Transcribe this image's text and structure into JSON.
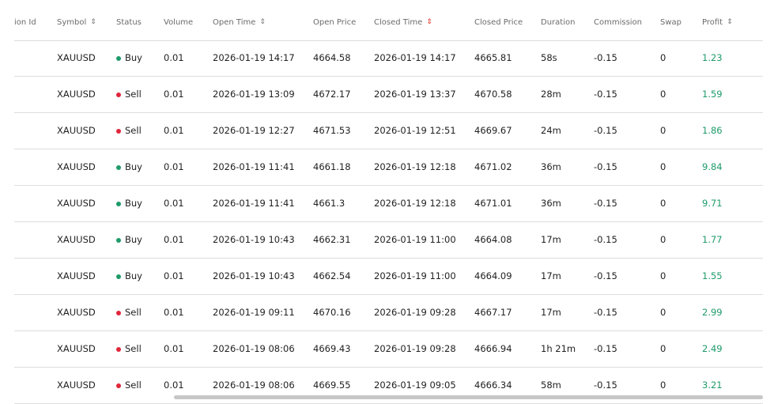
{
  "columns": [
    {
      "label": "ion Id",
      "sortable": false
    },
    {
      "label": "Symbol",
      "sortable": true
    },
    {
      "label": "Status",
      "sortable": false
    },
    {
      "label": "Volume",
      "sortable": false
    },
    {
      "label": "Open Time",
      "sortable": true
    },
    {
      "label": "Open Price",
      "sortable": false
    },
    {
      "label": "Closed Time",
      "sortable": true,
      "active": true
    },
    {
      "label": "Closed Price",
      "sortable": false
    },
    {
      "label": "Duration",
      "sortable": false
    },
    {
      "label": "Commission",
      "sortable": false
    },
    {
      "label": "Swap",
      "sortable": false
    },
    {
      "label": "Profit",
      "sortable": true
    }
  ],
  "colors": {
    "buy": "#1e9b69",
    "sell": "#e0263a",
    "profit": "#1e9b69",
    "sort_active": "#e0392b"
  },
  "rows": [
    {
      "symbol": "XAUUSD",
      "status": "Buy",
      "volume": "0.01",
      "open_time": "2026-01-19 14:17",
      "open_price": "4664.58",
      "closed_time": "2026-01-19 14:17",
      "closed_price": "4665.81",
      "duration": "58s",
      "commission": "-0.15",
      "swap": "0",
      "profit": "1.23"
    },
    {
      "symbol": "XAUUSD",
      "status": "Sell",
      "volume": "0.01",
      "open_time": "2026-01-19 13:09",
      "open_price": "4672.17",
      "closed_time": "2026-01-19 13:37",
      "closed_price": "4670.58",
      "duration": "28m",
      "commission": "-0.15",
      "swap": "0",
      "profit": "1.59"
    },
    {
      "symbol": "XAUUSD",
      "status": "Sell",
      "volume": "0.01",
      "open_time": "2026-01-19 12:27",
      "open_price": "4671.53",
      "closed_time": "2026-01-19 12:51",
      "closed_price": "4669.67",
      "duration": "24m",
      "commission": "-0.15",
      "swap": "0",
      "profit": "1.86"
    },
    {
      "symbol": "XAUUSD",
      "status": "Buy",
      "volume": "0.01",
      "open_time": "2026-01-19 11:41",
      "open_price": "4661.18",
      "closed_time": "2026-01-19 12:18",
      "closed_price": "4671.02",
      "duration": "36m",
      "commission": "-0.15",
      "swap": "0",
      "profit": "9.84"
    },
    {
      "symbol": "XAUUSD",
      "status": "Buy",
      "volume": "0.01",
      "open_time": "2026-01-19 11:41",
      "open_price": "4661.3",
      "closed_time": "2026-01-19 12:18",
      "closed_price": "4671.01",
      "duration": "36m",
      "commission": "-0.15",
      "swap": "0",
      "profit": "9.71"
    },
    {
      "symbol": "XAUUSD",
      "status": "Buy",
      "volume": "0.01",
      "open_time": "2026-01-19 10:43",
      "open_price": "4662.31",
      "closed_time": "2026-01-19 11:00",
      "closed_price": "4664.08",
      "duration": "17m",
      "commission": "-0.15",
      "swap": "0",
      "profit": "1.77"
    },
    {
      "symbol": "XAUUSD",
      "status": "Buy",
      "volume": "0.01",
      "open_time": "2026-01-19 10:43",
      "open_price": "4662.54",
      "closed_time": "2026-01-19 11:00",
      "closed_price": "4664.09",
      "duration": "17m",
      "commission": "-0.15",
      "swap": "0",
      "profit": "1.55"
    },
    {
      "symbol": "XAUUSD",
      "status": "Sell",
      "volume": "0.01",
      "open_time": "2026-01-19 09:11",
      "open_price": "4670.16",
      "closed_time": "2026-01-19 09:28",
      "closed_price": "4667.17",
      "duration": "17m",
      "commission": "-0.15",
      "swap": "0",
      "profit": "2.99"
    },
    {
      "symbol": "XAUUSD",
      "status": "Sell",
      "volume": "0.01",
      "open_time": "2026-01-19 08:06",
      "open_price": "4669.43",
      "closed_time": "2026-01-19 09:28",
      "closed_price": "4666.94",
      "duration": "1h 21m",
      "commission": "-0.15",
      "swap": "0",
      "profit": "2.49"
    },
    {
      "symbol": "XAUUSD",
      "status": "Sell",
      "volume": "0.01",
      "open_time": "2026-01-19 08:06",
      "open_price": "4669.55",
      "closed_time": "2026-01-19 09:05",
      "closed_price": "4666.34",
      "duration": "58m",
      "commission": "-0.15",
      "swap": "0",
      "profit": "3.21"
    }
  ]
}
